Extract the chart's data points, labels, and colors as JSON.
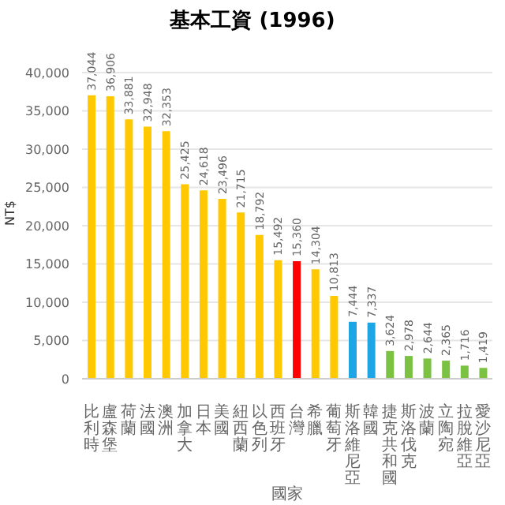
{
  "chart_data": {
    "type": "bar",
    "title": "基本工資 (1996)",
    "xlabel": "國家",
    "ylabel": "NT$",
    "categories": [
      "比利時",
      "盧森堡",
      "荷蘭",
      "法國",
      "澳洲",
      "加拿大",
      "日本",
      "美國",
      "紐西蘭",
      "以色列",
      "西班牙",
      "台灣",
      "希臘",
      "葡萄牙",
      "斯洛維尼亞",
      "韓國",
      "捷克共和國",
      "斯洛伐克",
      "波蘭",
      "立陶宛",
      "拉脫維亞",
      "愛沙尼亞"
    ],
    "values": [
      37044,
      36906,
      33881,
      32948,
      32353,
      25425,
      24618,
      23496,
      21715,
      18792,
      15492,
      15360,
      14304,
      10813,
      7444,
      7337,
      3624,
      2978,
      2644,
      2365,
      1716,
      1419
    ],
    "colors": [
      "#ffc800",
      "#ffc800",
      "#ffc800",
      "#ffc800",
      "#ffc800",
      "#ffc800",
      "#ffc800",
      "#ffc800",
      "#ffc800",
      "#ffc800",
      "#ffc800",
      "#ff0000",
      "#ffc800",
      "#ffc800",
      "#1ea5e6",
      "#1ea5e6",
      "#7cc242",
      "#7cc242",
      "#7cc242",
      "#7cc242",
      "#7cc242",
      "#7cc242"
    ],
    "ylim": [
      0,
      40000
    ],
    "yticks": [
      {
        "value": 0,
        "label": "0"
      },
      {
        "value": 5000,
        "label": "5,000"
      },
      {
        "value": 10000,
        "label": "10,000"
      },
      {
        "value": 15000,
        "label": "15,000"
      },
      {
        "value": 20000,
        "label": "20,000"
      },
      {
        "value": 25000,
        "label": "25,000"
      },
      {
        "value": 30000,
        "label": "30,000"
      },
      {
        "value": 35000,
        "label": "35,000"
      },
      {
        "value": 40000,
        "label": "40,000"
      }
    ],
    "value_labels": [
      "37,044",
      "36,906",
      "33,881",
      "32,948",
      "32,353",
      "25,425",
      "24,618",
      "23,496",
      "21,715",
      "18,792",
      "15,492",
      "15,360",
      "14,304",
      "10,813",
      "7,444",
      "7,337",
      "3,624",
      "2,978",
      "2,644",
      "2,365",
      "1,716",
      "1,419"
    ],
    "grid": "y"
  }
}
